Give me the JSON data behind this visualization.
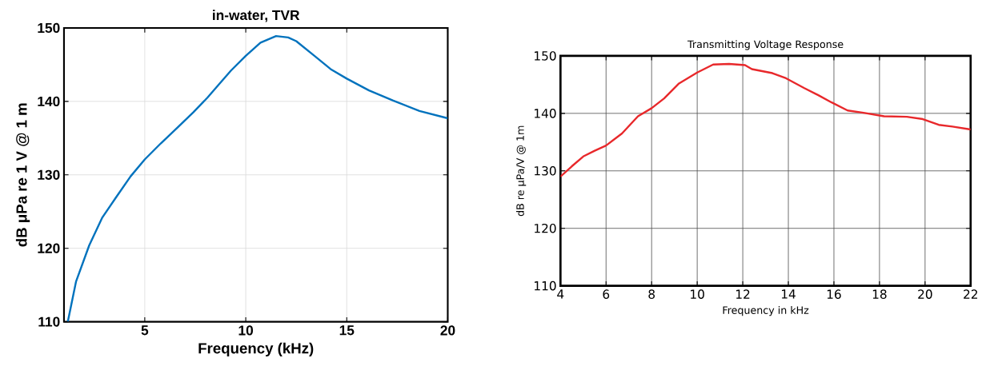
{
  "chart_data": [
    {
      "type": "line",
      "title": "in-water, TVR",
      "xlabel": "Frequency (kHz)",
      "ylabel": "dB μPa re 1 V @ 1 m",
      "x": [
        1.19,
        1.6,
        2.25,
        2.9,
        3.57,
        4.3,
        5,
        5.8,
        6.64,
        7.4,
        8.1,
        8.7,
        9.27,
        10,
        10.73,
        11.5,
        12.1,
        12.5,
        13.4,
        14.2,
        15,
        16.1,
        17.3,
        18.6,
        20
      ],
      "series": [
        {
          "color": "#0072bd",
          "values": [
            110,
            115.5,
            120.4,
            124.2,
            126.9,
            129.8,
            132.1,
            134.3,
            136.5,
            138.5,
            140.5,
            142.4,
            144.2,
            146.2,
            148,
            148.9,
            148.7,
            148.2,
            146.2,
            144.4,
            143.1,
            141.5,
            140.1,
            138.7,
            137.7
          ]
        }
      ],
      "xlim": [
        1,
        20
      ],
      "ylim": [
        110,
        150
      ],
      "xticks": [
        5,
        10,
        15,
        20
      ],
      "yticks": [
        110,
        120,
        130,
        140,
        150
      ],
      "grid": true,
      "line_style": "solid",
      "marker": "none"
    },
    {
      "type": "line",
      "title": "Transmitting Voltage Response",
      "xlabel": "Frequency in kHz",
      "ylabel": "dB re μPa/V @ 1m",
      "x": [
        4,
        4.5,
        5,
        5.5,
        6,
        6.7,
        7.4,
        8,
        8.55,
        9.2,
        10,
        10.7,
        11.4,
        12.1,
        12.4,
        13.3,
        13.9,
        14.7,
        15.3,
        15.9,
        16.6,
        17.3,
        18.2,
        19.2,
        19.9,
        20.6,
        21.2,
        22
      ],
      "series": [
        {
          "color": "#e8282b",
          "values": [
            129,
            130.8,
            132.5,
            133.5,
            134.4,
            136.5,
            139.5,
            140.9,
            142.6,
            145.2,
            147.1,
            148.5,
            148.6,
            148.4,
            147.7,
            147,
            146.1,
            144.4,
            143.2,
            141.9,
            140.5,
            140.1,
            139.5,
            139.4,
            139,
            138,
            137.7,
            137.2
          ]
        }
      ],
      "xlim": [
        4,
        22
      ],
      "ylim": [
        110,
        150
      ],
      "xticks": [
        4,
        6,
        8,
        10,
        12,
        14,
        16,
        18,
        20,
        22
      ],
      "yticks": [
        110,
        120,
        130,
        140,
        150
      ],
      "grid": true,
      "line_style": "solid",
      "marker": "none"
    }
  ]
}
